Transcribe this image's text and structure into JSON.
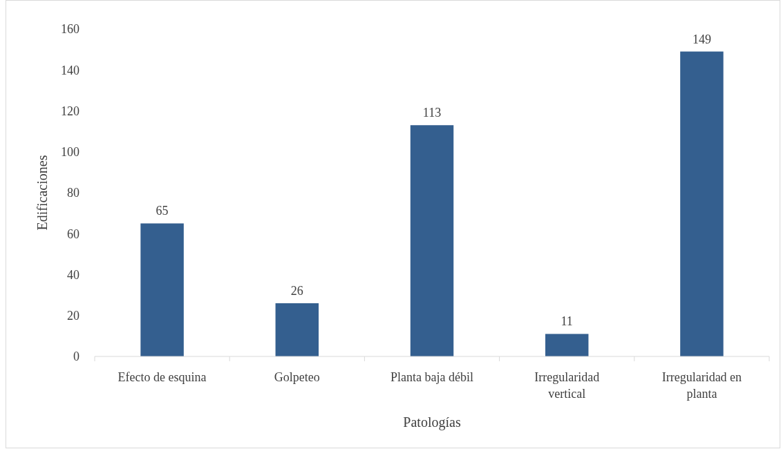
{
  "chart_data": {
    "type": "bar",
    "xlabel": "Patologías",
    "ylabel": "Edificaciones",
    "categories": [
      "Efecto de esquina",
      "Golpeteo",
      "Planta baja débil",
      "Irregularidad vertical",
      "Irregularidad en planta"
    ],
    "values": [
      65,
      26,
      113,
      11,
      149
    ],
    "color": "#345f8f",
    "ylim": [
      0,
      160
    ],
    "yticks": [
      0,
      20,
      40,
      60,
      80,
      100,
      120,
      140,
      160
    ],
    "grid": false,
    "data_labels": true
  }
}
